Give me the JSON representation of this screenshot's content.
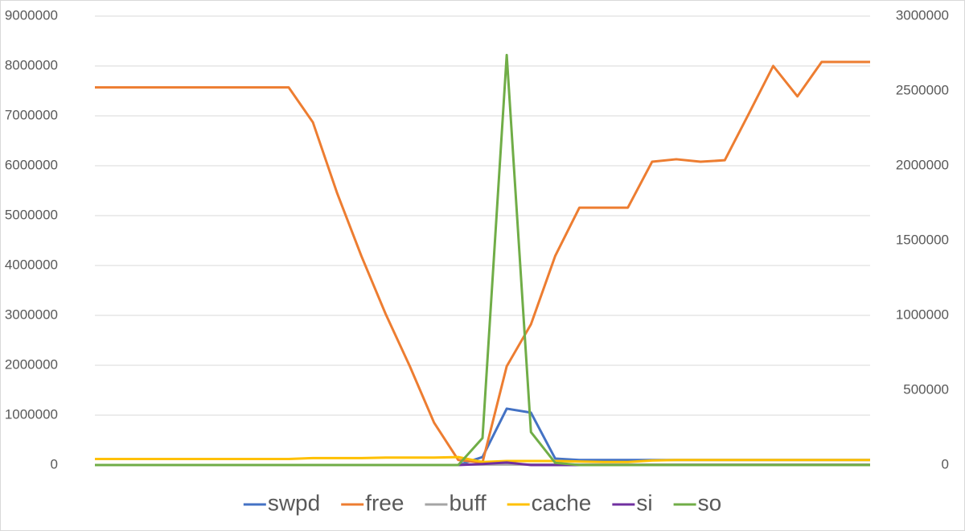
{
  "chart_data": {
    "type": "line",
    "categories": [
      null,
      null,
      null,
      null,
      null,
      null,
      null,
      null,
      null,
      null,
      null,
      null,
      null,
      null,
      null,
      null,
      null,
      null,
      null,
      null,
      null,
      null,
      null,
      null,
      null,
      null,
      null,
      null,
      null,
      null,
      null,
      null,
      null
    ],
    "series": [
      {
        "name": "swpd",
        "color": "#4472c4",
        "values": [
          null,
          null,
          null,
          null,
          null,
          null,
          null,
          null,
          null,
          null,
          null,
          null,
          null,
          null,
          null,
          0,
          160000,
          1130000,
          1050000,
          130000,
          100000,
          100000,
          100000,
          100000,
          100000,
          100000,
          100000,
          100000,
          100000,
          100000,
          100000,
          100000,
          100000
        ]
      },
      {
        "name": "free",
        "color": "#ed7d31",
        "values": [
          7570000,
          7570000,
          7570000,
          7570000,
          7570000,
          7570000,
          7570000,
          7570000,
          7570000,
          6870000,
          5450000,
          4190000,
          3030000,
          1980000,
          850000,
          100000,
          50000,
          1980000,
          2820000,
          4190000,
          5160000,
          5160000,
          5160000,
          6080000,
          6130000,
          6080000,
          6110000,
          7050000,
          8000000,
          7390000,
          8080000,
          8080000,
          8080000
        ]
      },
      {
        "name": "buff",
        "color": "#a5a5a5",
        "values": [
          null,
          null,
          null,
          null,
          null,
          null,
          null,
          null,
          null,
          null,
          null,
          null,
          null,
          null,
          null,
          10000,
          10000,
          10000,
          10000,
          10000,
          10000,
          10000,
          10000,
          10000,
          10000,
          10000,
          10000,
          10000,
          10000,
          10000,
          10000,
          10000,
          10000
        ]
      },
      {
        "name": "cache",
        "color": "#ffc000",
        "values": [
          120000,
          120000,
          120000,
          120000,
          120000,
          120000,
          120000,
          120000,
          120000,
          140000,
          140000,
          140000,
          150000,
          150000,
          150000,
          160000,
          60000,
          80000,
          80000,
          80000,
          70000,
          60000,
          60000,
          90000,
          100000,
          100000,
          100000,
          100000,
          100000,
          100000,
          100000,
          100000,
          100000
        ]
      },
      {
        "name": "si",
        "color": "#7030a0",
        "values": [
          null,
          null,
          null,
          null,
          null,
          null,
          null,
          null,
          null,
          null,
          null,
          null,
          null,
          null,
          null,
          0,
          20000,
          50000,
          0,
          0,
          0,
          0,
          0,
          0,
          0,
          0,
          0,
          0,
          0,
          0,
          0,
          0,
          0
        ]
      },
      {
        "name": "so",
        "color": "#70ad47",
        "axis": "y2",
        "values": [
          0,
          0,
          0,
          0,
          0,
          0,
          0,
          0,
          0,
          0,
          0,
          0,
          0,
          0,
          0,
          0,
          180000,
          2740000,
          220000,
          15000,
          0,
          0,
          0,
          0,
          0,
          0,
          0,
          0,
          0,
          0,
          0,
          0,
          0
        ]
      }
    ],
    "ylim": [
      0,
      9000000
    ],
    "yticks": [
      0,
      1000000,
      2000000,
      3000000,
      4000000,
      5000000,
      6000000,
      7000000,
      8000000,
      9000000
    ],
    "y2lim": [
      0,
      3000000
    ],
    "y2ticks": [
      0,
      500000,
      1000000,
      1500000,
      2000000,
      2500000,
      3000000
    ],
    "grid": true,
    "legend": "bottom"
  }
}
